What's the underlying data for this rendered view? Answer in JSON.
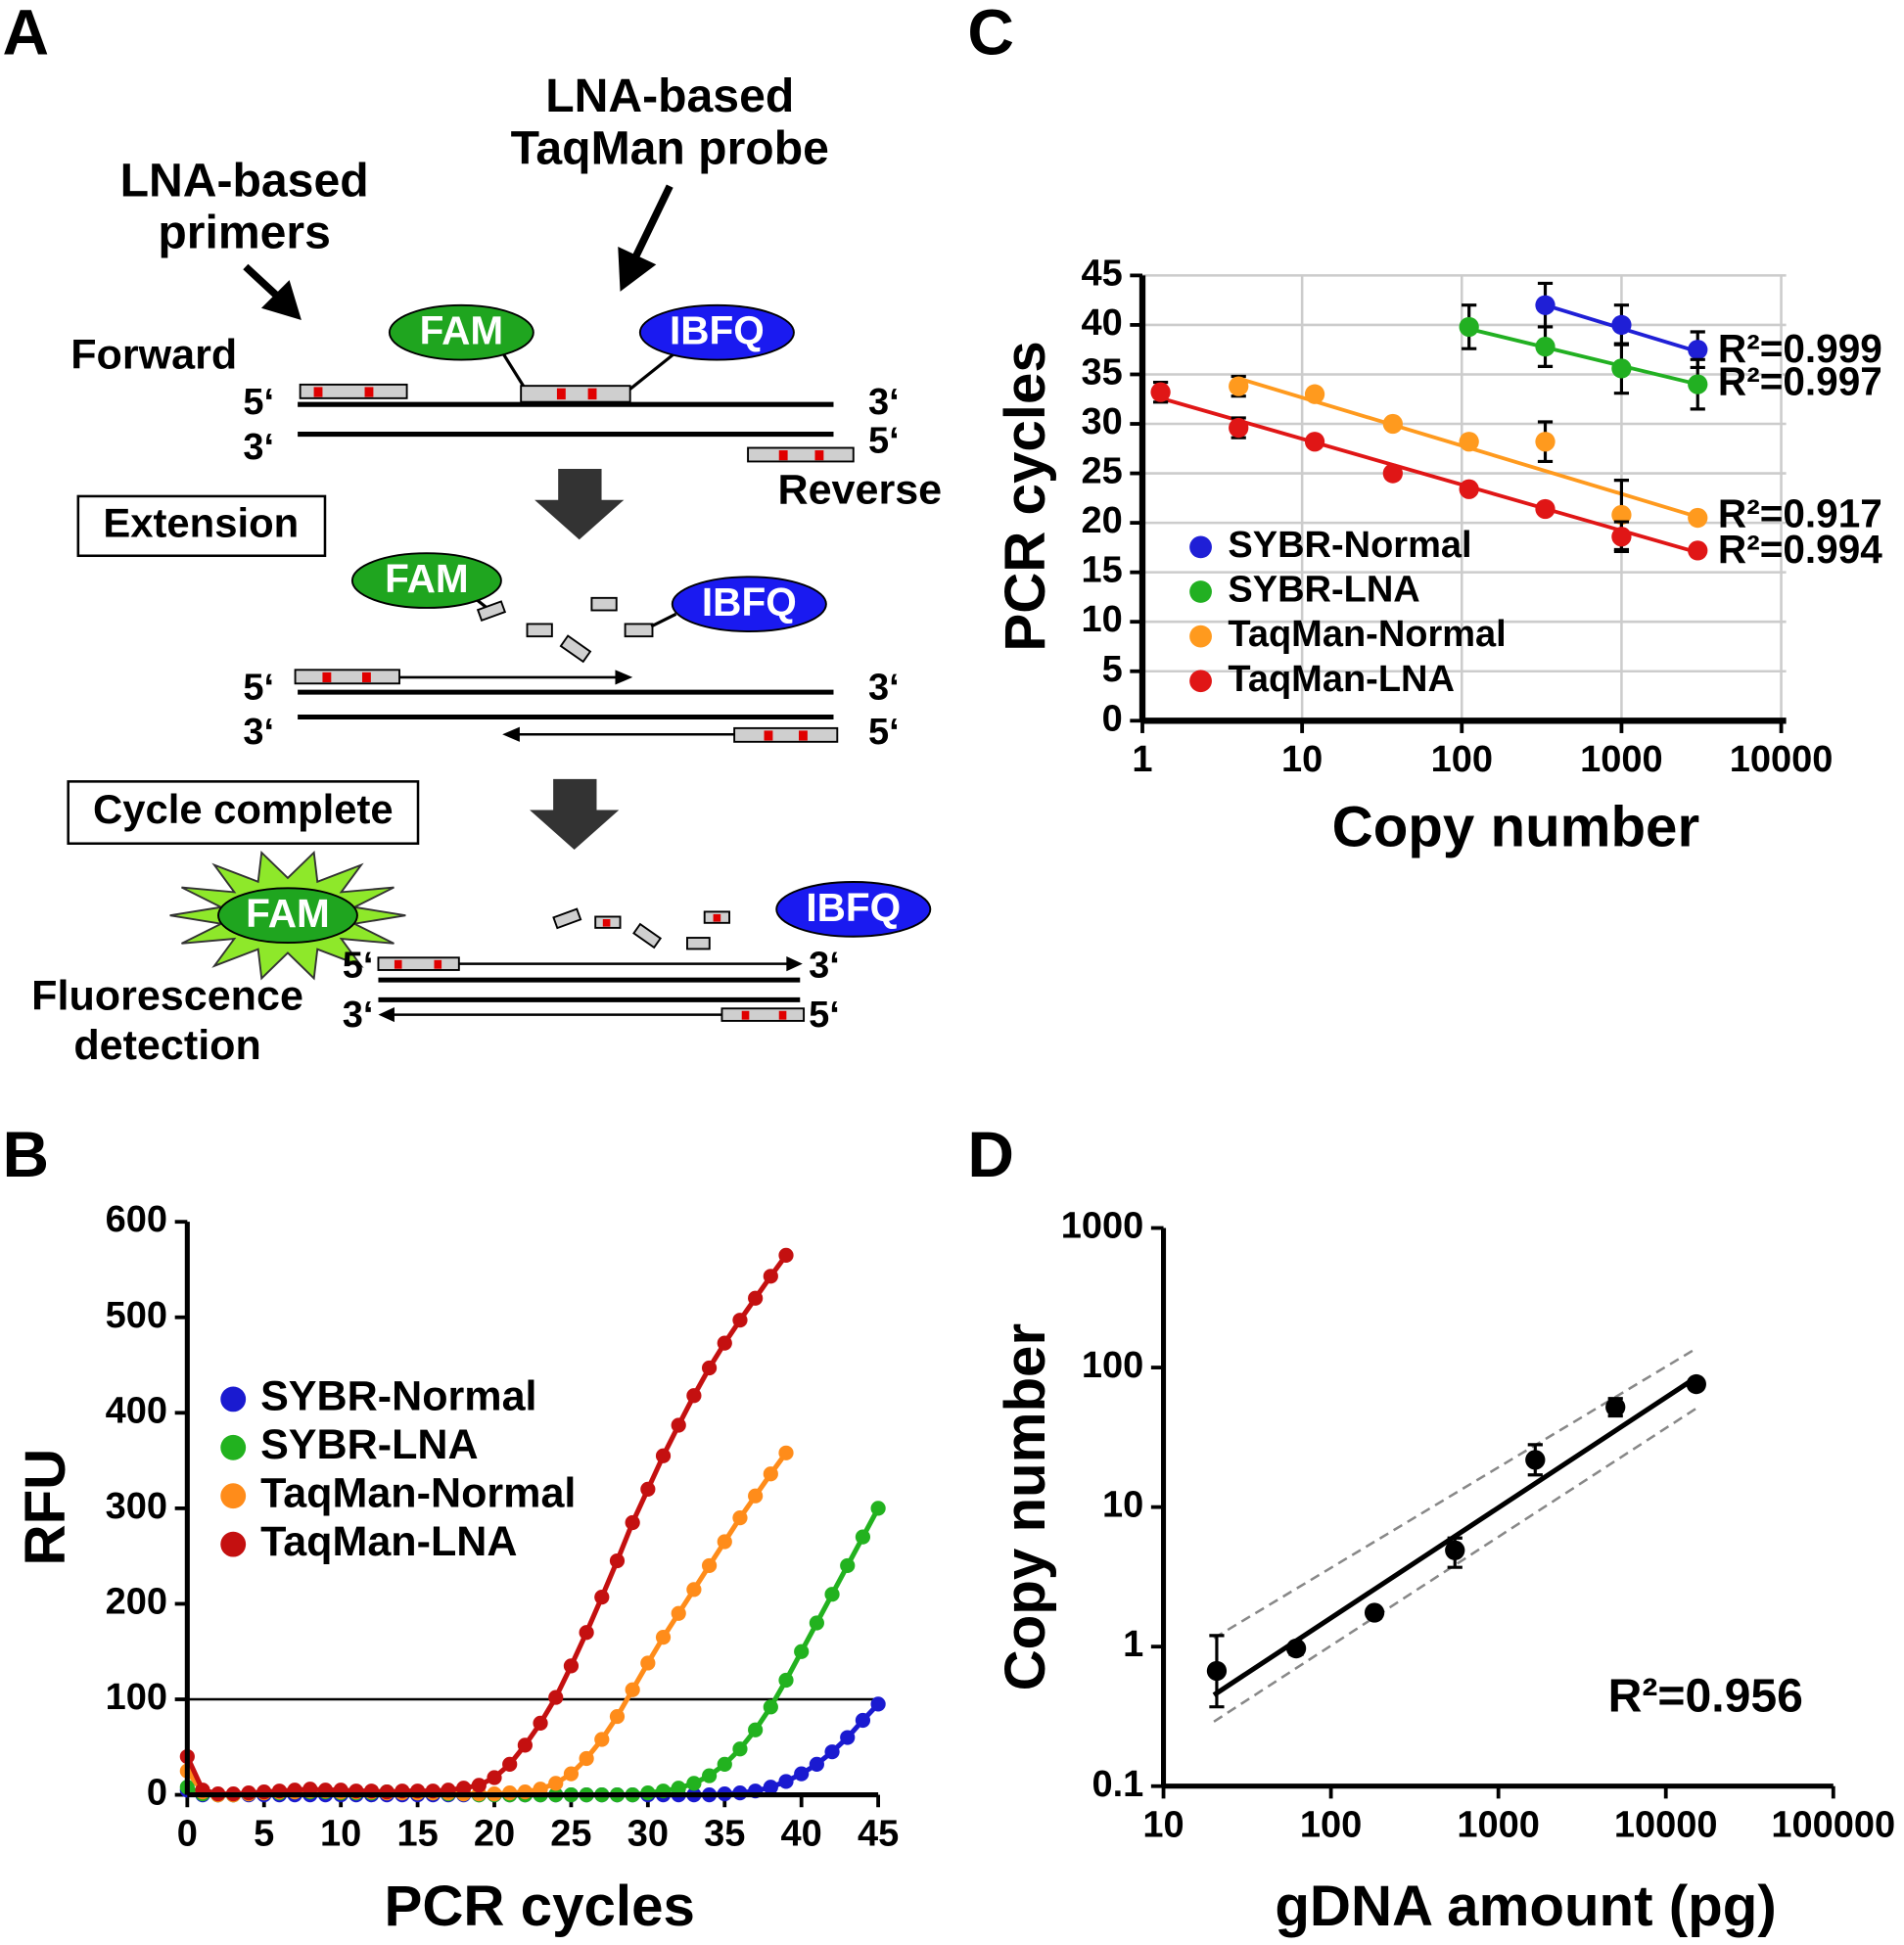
{
  "diagram": {
    "panel": "A",
    "probe_label": [
      "LNA-based",
      "TaqMan probe"
    ],
    "primer_label": [
      "LNA-based",
      "primers"
    ],
    "forward": "Forward",
    "reverse": "Reverse",
    "five_prime": "5‘",
    "three_prime": "3‘",
    "fluorophore": "FAM",
    "quencher": "IBFQ",
    "step_1": "Extension",
    "step_2": "Cycle complete",
    "detection_label": [
      "Fluorescence",
      "detection"
    ]
  },
  "chart_data": [
    {
      "panel": "B",
      "type": "line",
      "x_label": "PCR cycles",
      "y_label": "RFU",
      "x": [
        0,
        1,
        2,
        3,
        4,
        5,
        6,
        7,
        8,
        9,
        10,
        11,
        12,
        13,
        14,
        15,
        16,
        17,
        18,
        19,
        20,
        21,
        22,
        23,
        24,
        25,
        26,
        27,
        28,
        29,
        30,
        31,
        32,
        33,
        34,
        35,
        36,
        37,
        38,
        39,
        40,
        41,
        42,
        43,
        44,
        45
      ],
      "xlim": [
        0,
        45
      ],
      "ylim": [
        0,
        600
      ],
      "xticks": [
        0,
        5,
        10,
        15,
        20,
        25,
        30,
        35,
        40,
        45
      ],
      "yticks": [
        0,
        100,
        200,
        300,
        400,
        500,
        600
      ],
      "threshold": 100,
      "series": [
        {
          "name": "SYBR-Normal",
          "color": "#1a1ad0",
          "values": [
            5,
            0,
            0,
            0,
            0,
            0,
            0,
            0,
            0,
            0,
            0,
            0,
            0,
            0,
            0,
            0,
            0,
            0,
            0,
            0,
            0,
            0,
            0,
            0,
            0,
            0,
            0,
            0,
            0,
            0,
            0,
            0,
            0,
            0,
            0,
            1,
            2,
            4,
            8,
            14,
            22,
            32,
            45,
            60,
            78,
            95
          ]
        },
        {
          "name": "SYBR-LNA",
          "color": "#22b21f",
          "values": [
            8,
            1,
            0,
            0,
            1,
            2,
            2,
            3,
            3,
            3,
            2,
            2,
            2,
            3,
            3,
            2,
            2,
            1,
            1,
            0,
            0,
            0,
            0,
            0,
            0,
            0,
            0,
            0,
            0,
            0,
            2,
            4,
            7,
            12,
            20,
            32,
            48,
            68,
            92,
            120,
            150,
            180,
            210,
            240,
            270,
            300
          ]
        },
        {
          "name": "TaqMan-Normal",
          "color": "#ff8c1a",
          "values": [
            25,
            3,
            0,
            0,
            1,
            2,
            3,
            3,
            4,
            4,
            3,
            3,
            3,
            2,
            2,
            2,
            2,
            2,
            1,
            1,
            1,
            2,
            3,
            6,
            12,
            22,
            38,
            58,
            82,
            110,
            138,
            165,
            190,
            215,
            240,
            265,
            290,
            313,
            336,
            358,
            null,
            null,
            null,
            null,
            null,
            null
          ]
        },
        {
          "name": "TaqMan-LNA",
          "color": "#c41010",
          "values": [
            40,
            5,
            1,
            1,
            2,
            3,
            4,
            5,
            6,
            5,
            5,
            4,
            4,
            3,
            4,
            4,
            4,
            5,
            7,
            10,
            18,
            32,
            52,
            75,
            102,
            135,
            170,
            207,
            245,
            285,
            320,
            355,
            387,
            418,
            447,
            473,
            497,
            520,
            543,
            565,
            null,
            null,
            null,
            null,
            null,
            null
          ]
        }
      ]
    },
    {
      "panel": "C",
      "type": "scatter",
      "x_label": "Copy number",
      "y_label": "PCR cycles",
      "x_scale": "log",
      "xlim": [
        1,
        10000
      ],
      "ylim": [
        0,
        45
      ],
      "xticks": [
        1,
        10,
        100,
        1000,
        10000
      ],
      "yticks": [
        0,
        5,
        10,
        15,
        20,
        25,
        30,
        35,
        40,
        45
      ],
      "grid": true,
      "series": [
        {
          "name": "SYBR-Normal",
          "color": "#1f1fd6",
          "x": [
            333,
            1000,
            3000
          ],
          "values": [
            42,
            40,
            37.5
          ],
          "errors": [
            2.2,
            2,
            1.8
          ],
          "fit": {
            "x": [
              333,
              3000
            ],
            "y": [
              42,
              37.3
            ]
          },
          "annotation": "R²=0.999"
        },
        {
          "name": "SYBR-LNA",
          "color": "#22b022",
          "x": [
            111,
            333,
            1000,
            3000
          ],
          "values": [
            39.8,
            37.8,
            35.6,
            34
          ],
          "errors": [
            2.2,
            2,
            2.5,
            2.5
          ],
          "fit": {
            "x": [
              111,
              3000
            ],
            "y": [
              39.6,
              34
            ]
          },
          "annotation": "R²=0.997"
        },
        {
          "name": "TaqMan-Normal",
          "color": "#ff9a1e",
          "x": [
            4,
            12,
            37,
            111,
            333,
            1000,
            3000
          ],
          "values": [
            33.8,
            33,
            30,
            28.2,
            28.2,
            20.8,
            20.5
          ],
          "errors": [
            1,
            0,
            0,
            0,
            2,
            3.5,
            0
          ],
          "fit": {
            "x": [
              4,
              3000
            ],
            "y": [
              34.6,
              20.6
            ]
          },
          "annotation": "R²=0.917"
        },
        {
          "name": "TaqMan-LNA",
          "color": "#e01616",
          "x": [
            1.3,
            4,
            12,
            37,
            111,
            333,
            1000,
            3000
          ],
          "values": [
            33.2,
            29.6,
            28.2,
            25,
            23.4,
            21.4,
            18.6,
            17.2
          ],
          "errors": [
            1,
            1,
            0,
            0,
            0,
            0,
            1.5,
            0
          ],
          "fit": {
            "x": [
              1.3,
              3000
            ],
            "y": [
              32.6,
              17
            ]
          },
          "annotation": "R²=0.994"
        }
      ]
    },
    {
      "panel": "D",
      "type": "scatter",
      "x_label": "gDNA amount (pg)",
      "y_label": "Copy number",
      "x_scale": "log",
      "y_scale": "log",
      "xlim": [
        10,
        100000
      ],
      "ylim": [
        0.1,
        1000
      ],
      "xticks": [
        10,
        100,
        1000,
        10000,
        100000
      ],
      "yticks": [
        0.1,
        1,
        10,
        100,
        1000
      ],
      "annotation": "R²=0.956",
      "series": [
        {
          "color": "#000000",
          "x": [
            20.8,
            62,
            182,
            550,
            1660,
            5000,
            15200
          ],
          "values": [
            0.67,
            0.97,
            1.75,
            4.9,
            21.8,
            52,
            76
          ],
          "error_low": [
            0.37,
            0.88,
            1.6,
            3.7,
            17,
            45,
            70
          ],
          "error_high": [
            1.2,
            1.05,
            1.9,
            6,
            28,
            60,
            82
          ],
          "fit": {
            "x": [
              20,
              15200
            ],
            "y": [
              0.45,
              85
            ]
          }
        }
      ],
      "confidence_band": {
        "x": [
          20,
          15200
        ],
        "upper": [
          1.15,
          137
        ],
        "lower": [
          0.29,
          51
        ]
      }
    }
  ]
}
